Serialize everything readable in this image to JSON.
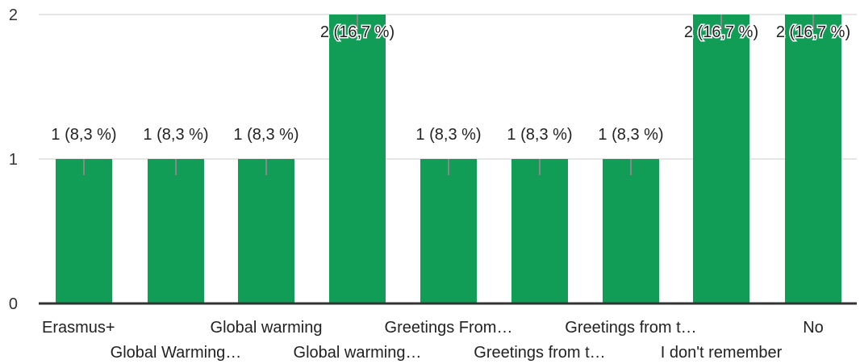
{
  "chart_data": {
    "type": "bar",
    "categories": [
      "Erasmus+",
      "Global Warming…",
      "Global warming",
      "Global warming…",
      "Greetings From…",
      "Greetings from t…",
      "Greetings from t…",
      "I don't remember",
      "No"
    ],
    "values": [
      1,
      1,
      1,
      2,
      1,
      1,
      1,
      2,
      2
    ],
    "data_labels": [
      "1 (8,3 %)",
      "1 (8,3 %)",
      "1 (8,3 %)",
      "2 (16,7 %)",
      "1 (8,3 %)",
      "1 (8,3 %)",
      "1 (8,3 %)",
      "2 (16,7 %)",
      "2 (16,7 %)"
    ],
    "yticks": [
      "0",
      "1",
      "2"
    ],
    "ylim": [
      0,
      2
    ],
    "title": "",
    "xlabel": "",
    "ylabel": "",
    "grid": true,
    "bar_color": "#129d57",
    "leader_color": "#888888",
    "grid_color": "#e6e6e6",
    "axis_color": "#333333"
  }
}
